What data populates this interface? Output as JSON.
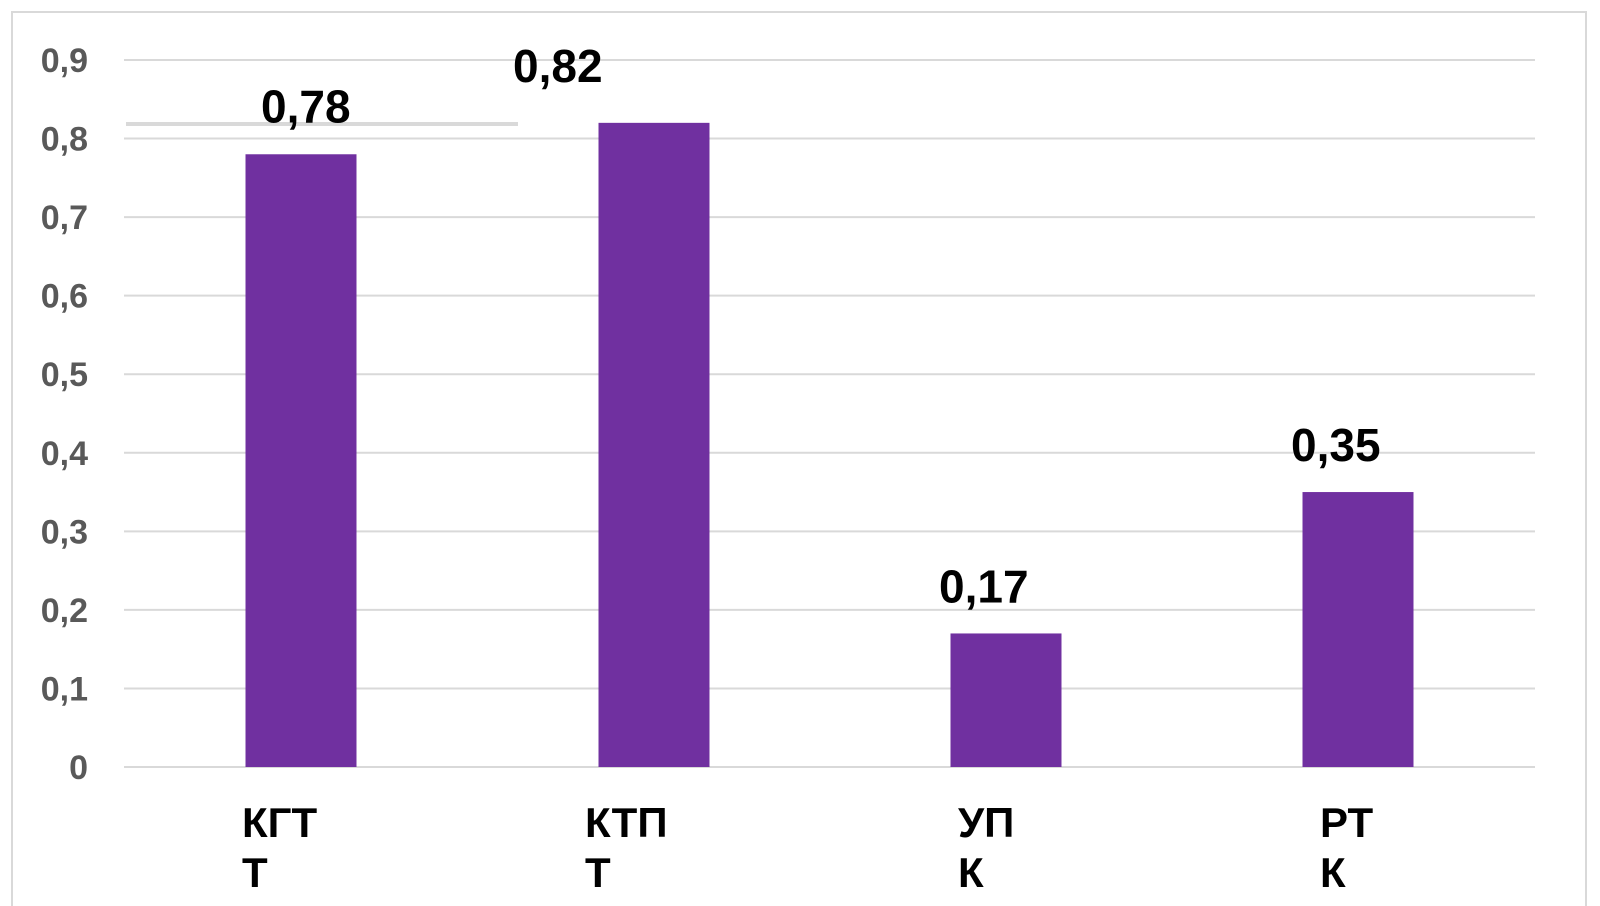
{
  "chart_data": {
    "type": "bar",
    "categories": [
      [
        "КГТ",
        "Т"
      ],
      [
        "КТП",
        "Т"
      ],
      [
        "УП",
        "К"
      ],
      [
        "РТ",
        "К"
      ]
    ],
    "values": [
      0.78,
      0.82,
      0.17,
      0.35
    ],
    "data_labels": [
      "0,78",
      "0,82",
      "0,17",
      "0,35"
    ],
    "yticks": [
      0,
      0.1,
      0.2,
      0.3,
      0.4,
      0.5,
      0.6,
      0.7,
      0.8,
      0.9
    ],
    "ytick_labels": [
      "0",
      "0,1",
      "0,2",
      "0,3",
      "0,4",
      "0,5",
      "0,6",
      "0,7",
      "0,8",
      "0,9"
    ],
    "ylim": [
      0,
      0.9
    ],
    "grid": true,
    "legend": "none",
    "title": "",
    "xlabel": "",
    "ylabel": "",
    "colors": {
      "bar": "#7030a0",
      "grid": "#d9d9d9",
      "tick_text": "#595959",
      "label_text": "#000000",
      "frame": "#d9d9d9"
    }
  }
}
